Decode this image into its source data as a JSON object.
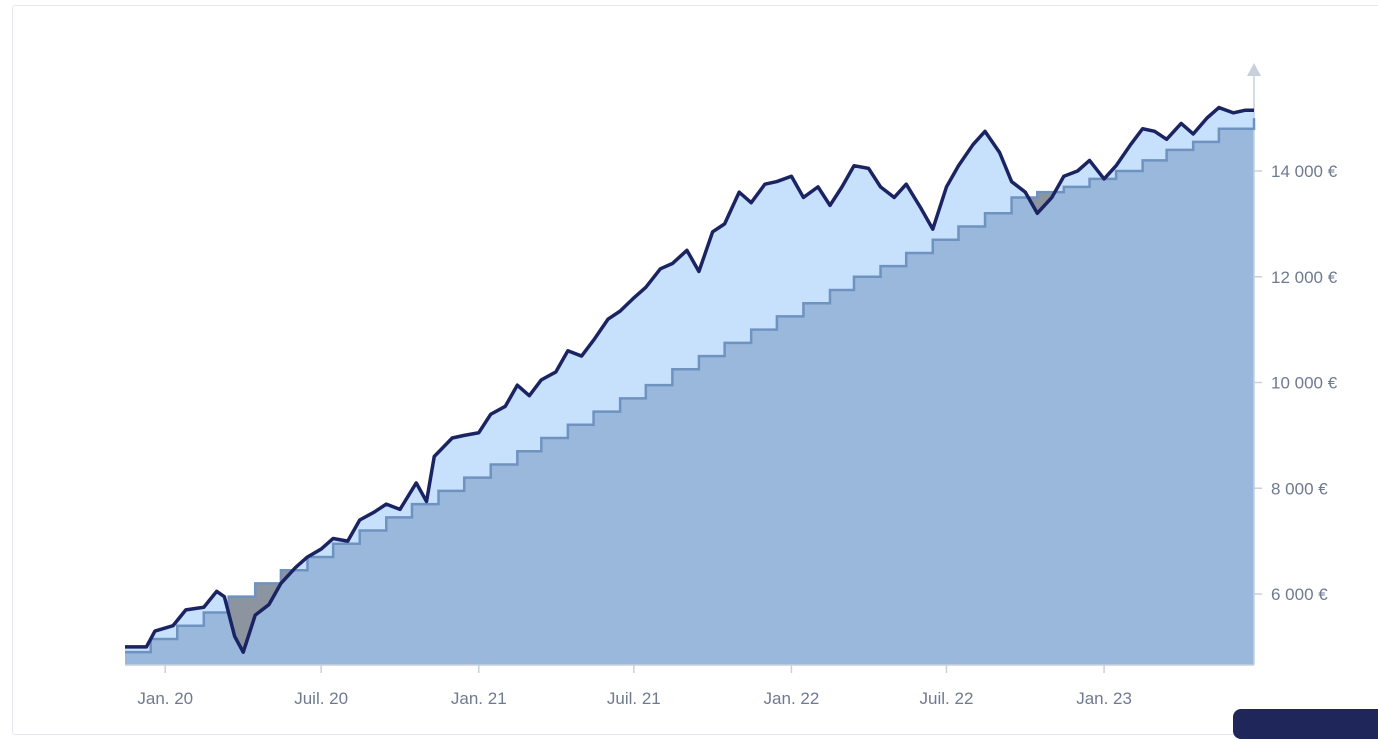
{
  "chart_data": {
    "type": "area",
    "title": "",
    "xlabel": "",
    "ylabel": "",
    "x_ticks": [
      "Jan. 20",
      "Juil. 20",
      "Jan. 21",
      "Juil. 21",
      "Jan. 22",
      "Juil. 22",
      "Jan. 23"
    ],
    "y_ticks": [
      "6 000 €",
      "8 000 €",
      "10 000 €",
      "12 000 €",
      "14 000 €"
    ],
    "y_tick_values": [
      6000,
      8000,
      10000,
      12000,
      14000
    ],
    "ylim": [
      4650,
      15500
    ],
    "xlim": [
      "2019-11-15",
      "2023-06-25"
    ],
    "grid": false,
    "colors": {
      "portfolio_line": "#1b2463",
      "gain_fill": "#c7e0fc",
      "invested_fill": "#9ab7dc",
      "invested_line": "#6f93c0",
      "loss_fill": "#8c949f",
      "loss_line": "#4b5563",
      "axis": "#c8d0dc"
    },
    "series": [
      {
        "series_type": "invested_step",
        "x": [
          "2019-11-15",
          "2019-12-15",
          "2020-01-15",
          "2020-02-15",
          "2020-03-15",
          "2020-04-15",
          "2020-05-15",
          "2020-06-15",
          "2020-07-15",
          "2020-08-15",
          "2020-09-15",
          "2020-10-15",
          "2020-11-15",
          "2020-12-15",
          "2021-01-15",
          "2021-02-15",
          "2021-03-15",
          "2021-04-15",
          "2021-05-15",
          "2021-06-15",
          "2021-07-15",
          "2021-08-15",
          "2021-09-15",
          "2021-10-15",
          "2021-11-15",
          "2021-12-15",
          "2022-01-15",
          "2022-02-15",
          "2022-03-15",
          "2022-04-15",
          "2022-05-15",
          "2022-06-15",
          "2022-07-15",
          "2022-08-15",
          "2022-09-15",
          "2022-10-15",
          "2022-11-15",
          "2022-12-15",
          "2023-01-15",
          "2023-02-15",
          "2023-03-15",
          "2023-04-15",
          "2023-05-15",
          "2023-06-25"
        ],
        "values": [
          4900,
          5150,
          5400,
          5650,
          5950,
          6200,
          6450,
          6700,
          6950,
          7200,
          7450,
          7700,
          7950,
          8200,
          8450,
          8700,
          8950,
          9200,
          9450,
          9700,
          9950,
          10250,
          10500,
          10750,
          11000,
          11250,
          11500,
          11750,
          12000,
          12200,
          12450,
          12700,
          12950,
          13200,
          13500,
          13600,
          13700,
          13850,
          14000,
          14200,
          14400,
          14550,
          14800,
          15000
        ]
      },
      {
        "series_type": "portfolio_value",
        "x": [
          "2019-11-15",
          "2019-12-10",
          "2019-12-20",
          "2020-01-10",
          "2020-01-25",
          "2020-02-15",
          "2020-03-01",
          "2020-03-10",
          "2020-03-22",
          "2020-04-01",
          "2020-04-15",
          "2020-05-01",
          "2020-05-15",
          "2020-06-01",
          "2020-06-15",
          "2020-07-01",
          "2020-07-15",
          "2020-08-01",
          "2020-08-15",
          "2020-09-01",
          "2020-09-15",
          "2020-10-01",
          "2020-10-20",
          "2020-11-01",
          "2020-11-10",
          "2020-12-01",
          "2020-12-15",
          "2021-01-01",
          "2021-01-15",
          "2021-02-01",
          "2021-02-15",
          "2021-03-01",
          "2021-03-15",
          "2021-04-01",
          "2021-04-15",
          "2021-05-01",
          "2021-05-15",
          "2021-06-01",
          "2021-06-15",
          "2021-07-01",
          "2021-07-15",
          "2021-08-01",
          "2021-08-15",
          "2021-09-01",
          "2021-09-15",
          "2021-10-01",
          "2021-10-15",
          "2021-11-01",
          "2021-11-15",
          "2021-12-01",
          "2021-12-15",
          "2022-01-01",
          "2022-01-15",
          "2022-02-01",
          "2022-02-15",
          "2022-03-01",
          "2022-03-15",
          "2022-04-01",
          "2022-04-15",
          "2022-05-01",
          "2022-05-15",
          "2022-06-01",
          "2022-06-15",
          "2022-07-01",
          "2022-07-15",
          "2022-08-01",
          "2022-08-15",
          "2022-09-01",
          "2022-09-15",
          "2022-10-01",
          "2022-10-15",
          "2022-11-01",
          "2022-11-15",
          "2022-12-01",
          "2022-12-15",
          "2023-01-01",
          "2023-01-15",
          "2023-02-01",
          "2023-02-15",
          "2023-03-01",
          "2023-03-15",
          "2023-04-01",
          "2023-04-15",
          "2023-05-01",
          "2023-05-15",
          "2023-06-01",
          "2023-06-15",
          "2023-06-25"
        ],
        "values": [
          5000,
          5000,
          5300,
          5400,
          5700,
          5750,
          6050,
          5950,
          5200,
          4900,
          5600,
          5800,
          6200,
          6500,
          6700,
          6850,
          7050,
          7000,
          7400,
          7550,
          7700,
          7600,
          8100,
          7750,
          8600,
          8950,
          9000,
          9050,
          9400,
          9550,
          9950,
          9750,
          10050,
          10200,
          10600,
          10500,
          10800,
          11200,
          11350,
          11600,
          11800,
          12150,
          12250,
          12500,
          12100,
          12850,
          13000,
          13600,
          13400,
          13750,
          13800,
          13900,
          13500,
          13700,
          13350,
          13700,
          14100,
          14050,
          13700,
          13500,
          13750,
          13300,
          12900,
          13700,
          14100,
          14500,
          14750,
          14350,
          13800,
          13600,
          13200,
          13500,
          13900,
          14000,
          14200,
          13850,
          14100,
          14500,
          14800,
          14750,
          14600,
          14900,
          14700,
          15000,
          15200,
          15100,
          15150,
          15150
        ]
      }
    ]
  }
}
